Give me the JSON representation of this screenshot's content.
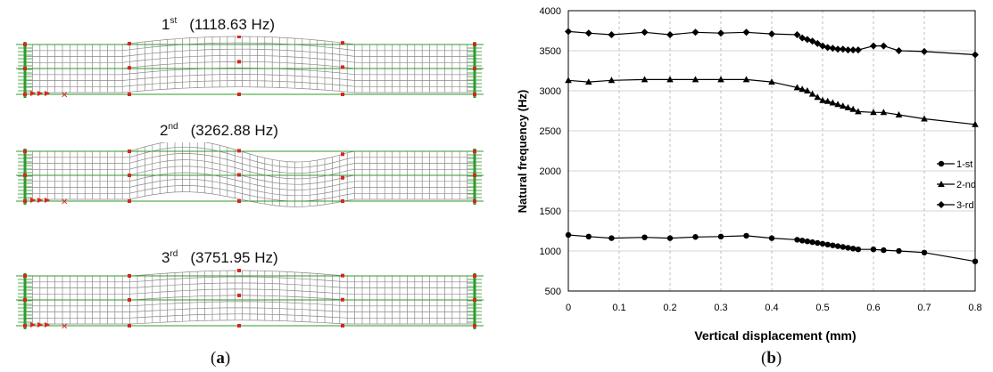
{
  "panel_a": {
    "modes": [
      {
        "ordinal": "1",
        "suffix": "st",
        "freq": "(1118.63 Hz)"
      },
      {
        "ordinal": "2",
        "suffix": "nd",
        "freq": "(3262.88 Hz)"
      },
      {
        "ordinal": "3",
        "suffix": "rd",
        "freq": "(3751.95 Hz)"
      }
    ],
    "caption": {
      "open": "(",
      "letter": "a",
      "close": ")"
    }
  },
  "panel_b": {
    "caption": {
      "open": "(",
      "letter": "b",
      "close": ")"
    }
  },
  "colors": {
    "mesh": "#8a8a8a",
    "support": "#2e9a2e",
    "node_red": "#d9261c",
    "axis": "#000000"
  },
  "chart_data": {
    "type": "line",
    "xlabel": "Vertical displacement (mm)",
    "ylabel": "Natural frequency (Hz)",
    "xlim": [
      0,
      0.8
    ],
    "ylim": [
      500,
      4000
    ],
    "xticks": [
      "0",
      "0.1",
      "0.2",
      "0.3",
      "0.4",
      "0.5",
      "0.6",
      "0.7",
      "0.8"
    ],
    "yticks": [
      "500",
      "1000",
      "1500",
      "2000",
      "2500",
      "3000",
      "3500",
      "4000"
    ],
    "grid": true,
    "legend_position": "right",
    "series": [
      {
        "name": "1-st",
        "marker": "circle",
        "x": [
          0,
          0.04,
          0.085,
          0.15,
          0.2,
          0.25,
          0.3,
          0.35,
          0.4,
          0.45,
          0.46,
          0.47,
          0.48,
          0.49,
          0.5,
          0.51,
          0.52,
          0.53,
          0.54,
          0.55,
          0.56,
          0.57,
          0.6,
          0.62,
          0.65,
          0.7,
          0.8
        ],
        "y": [
          1200,
          1180,
          1160,
          1170,
          1160,
          1175,
          1180,
          1190,
          1160,
          1140,
          1130,
          1120,
          1110,
          1100,
          1090,
          1080,
          1070,
          1060,
          1050,
          1040,
          1030,
          1020,
          1020,
          1010,
          1000,
          980,
          870
        ]
      },
      {
        "name": "2-nd",
        "marker": "triangle",
        "x": [
          0,
          0.04,
          0.085,
          0.15,
          0.2,
          0.25,
          0.3,
          0.35,
          0.4,
          0.45,
          0.46,
          0.47,
          0.48,
          0.49,
          0.5,
          0.51,
          0.52,
          0.53,
          0.54,
          0.55,
          0.56,
          0.57,
          0.6,
          0.62,
          0.65,
          0.7,
          0.8
        ],
        "y": [
          3130,
          3110,
          3130,
          3140,
          3140,
          3140,
          3140,
          3140,
          3110,
          3040,
          3020,
          3000,
          2960,
          2920,
          2880,
          2870,
          2850,
          2830,
          2810,
          2790,
          2770,
          2740,
          2730,
          2730,
          2700,
          2650,
          2580
        ]
      },
      {
        "name": "3-rd",
        "marker": "diamond",
        "x": [
          0,
          0.04,
          0.085,
          0.15,
          0.2,
          0.25,
          0.3,
          0.35,
          0.4,
          0.45,
          0.46,
          0.47,
          0.48,
          0.49,
          0.5,
          0.51,
          0.52,
          0.53,
          0.54,
          0.55,
          0.56,
          0.57,
          0.6,
          0.62,
          0.65,
          0.7,
          0.8
        ],
        "y": [
          3740,
          3720,
          3700,
          3730,
          3700,
          3730,
          3720,
          3730,
          3710,
          3700,
          3660,
          3640,
          3620,
          3590,
          3560,
          3540,
          3530,
          3520,
          3520,
          3510,
          3510,
          3510,
          3560,
          3560,
          3500,
          3490,
          3450
        ]
      }
    ]
  }
}
